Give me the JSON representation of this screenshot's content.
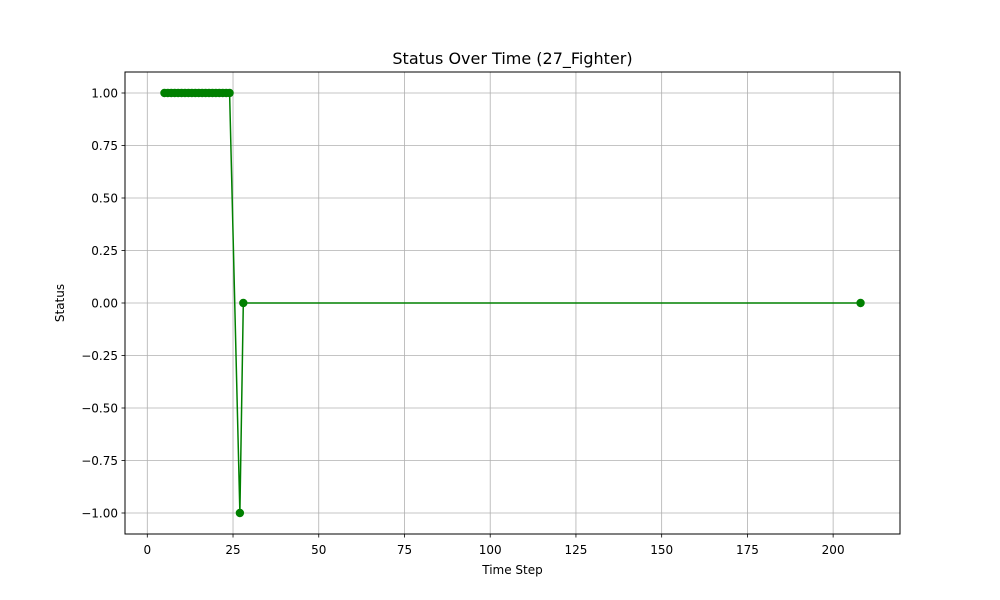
{
  "chart_data": {
    "type": "line",
    "title": "Status Over Time (27_Fighter)",
    "xlabel": "Time Step",
    "ylabel": "Status",
    "xlim": [
      -6.5,
      219.5
    ],
    "ylim": [
      -1.1,
      1.1
    ],
    "x_ticks": [
      0,
      25,
      50,
      75,
      100,
      125,
      150,
      175,
      200
    ],
    "x_tick_labels": [
      "0",
      "25",
      "50",
      "75",
      "100",
      "125",
      "150",
      "175",
      "200"
    ],
    "y_ticks": [
      1.0,
      0.75,
      0.5,
      0.25,
      0.0,
      -0.25,
      -0.5,
      -0.75,
      -1.0
    ],
    "y_tick_labels": [
      "1.00",
      "0.75",
      "0.50",
      "0.25",
      "0.00",
      "−0.25",
      "−0.50",
      "−0.75",
      "−1.00"
    ],
    "grid": true,
    "series": [
      {
        "color": "#008000",
        "marker": "circle",
        "x": [
          5,
          6,
          7,
          8,
          9,
          10,
          11,
          12,
          13,
          14,
          15,
          16,
          17,
          18,
          19,
          20,
          21,
          22,
          23,
          24,
          27,
          28,
          208
        ],
        "y": [
          1,
          1,
          1,
          1,
          1,
          1,
          1,
          1,
          1,
          1,
          1,
          1,
          1,
          1,
          1,
          1,
          1,
          1,
          1,
          1,
          -1,
          0,
          0
        ]
      }
    ]
  }
}
